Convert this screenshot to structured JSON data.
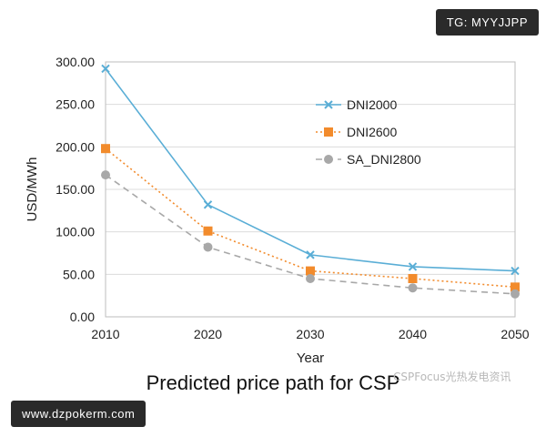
{
  "badges": {
    "top_right": "TG: MYYJJPP",
    "bottom_left": "www.dzpokerm.com"
  },
  "watermark": "CSPFocus光热发电资讯",
  "caption": "Predicted price path for CSP",
  "chart_data": {
    "type": "line",
    "title": "",
    "xlabel": "Year",
    "ylabel": "USD/MWh",
    "x": [
      2010,
      2020,
      2030,
      2040,
      2050
    ],
    "x_ticks": [
      "2010",
      "2020",
      "2030",
      "2040",
      "2050"
    ],
    "y_ticks": [
      "0.00",
      "50.00",
      "100.00",
      "150.00",
      "200.00",
      "250.00",
      "300.00"
    ],
    "ylim": [
      0,
      300
    ],
    "grid": "horizontal",
    "legend_position": "upper-right",
    "series": [
      {
        "name": "DNI2000",
        "color": "#5aaed6",
        "marker": "x",
        "dash": "solid",
        "values": [
          292,
          132,
          73,
          59,
          54
        ]
      },
      {
        "name": "DNI2600",
        "color": "#f28b2c",
        "marker": "square",
        "dash": "dotted",
        "values": [
          198,
          101,
          54,
          45,
          35
        ]
      },
      {
        "name": "SA_DNI2800",
        "color": "#a8a8a8",
        "marker": "circle",
        "dash": "dashed",
        "values": [
          167,
          82,
          45,
          34,
          27
        ]
      }
    ]
  }
}
